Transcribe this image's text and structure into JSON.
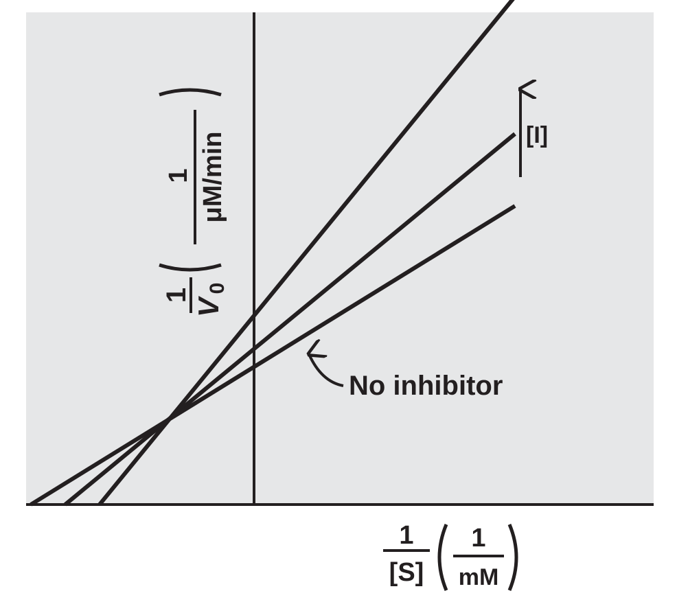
{
  "chart_data": {
    "type": "line",
    "title": "",
    "xlabel": {
      "frac_num": "1",
      "frac_den": "[S]",
      "unit_num": "1",
      "unit_den": "mM"
    },
    "ylabel": {
      "frac_num": "1",
      "frac_den_main": "V",
      "frac_den_sub": "0",
      "unit_num": "1",
      "unit_den": "μM/min"
    },
    "xlim": [
      -3.25,
      7.6
    ],
    "ylim": [
      0,
      7.6
    ],
    "grid": false,
    "background": "#e6e7e8",
    "line_color": "#231f20",
    "series": [
      {
        "name": "",
        "x": [
          -2.25,
          3.8
        ],
        "y": [
          0,
          7.4
        ]
      },
      {
        "name": "",
        "x": [
          -2.75,
          3.8
        ],
        "y": [
          0,
          5.4
        ]
      },
      {
        "name": "No inhibitor",
        "x": [
          -3.25,
          3.8
        ],
        "y": [
          0,
          4.35
        ]
      }
    ],
    "annotations": [
      {
        "text": "[I]",
        "arrow": "up"
      },
      {
        "text": "No inhibitor",
        "arrow": "to-bottom-line"
      }
    ]
  }
}
